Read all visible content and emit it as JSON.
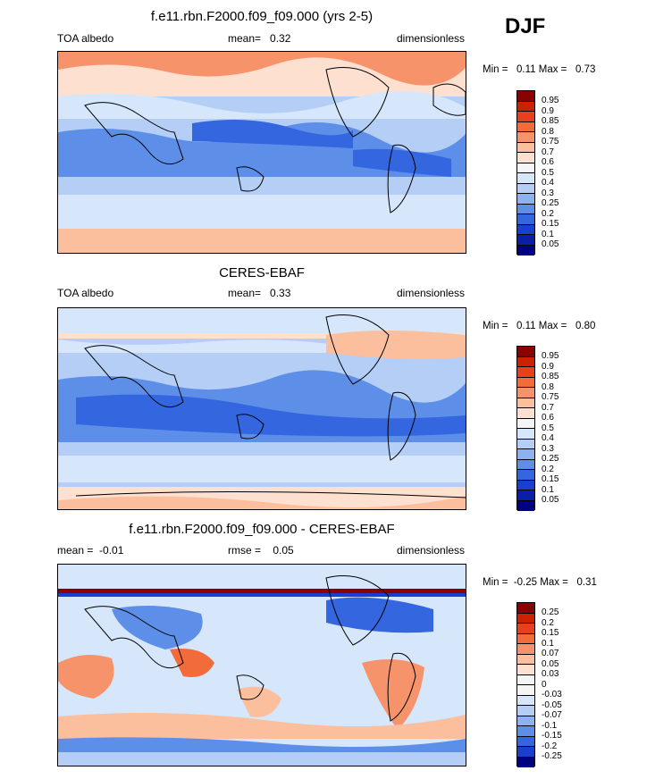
{
  "season": "DJF",
  "panels": [
    {
      "title": "f.e11.rbn.F2000.f09_f09.000 (yrs 2-5)",
      "left_label": "TOA albedo",
      "center_label": "mean=   0.32",
      "right_label": "dimensionless",
      "minmax": "Min =   0.11 Max =   0.73"
    },
    {
      "title": "CERES-EBAF",
      "left_label": "TOA albedo",
      "center_label": "mean=   0.33",
      "right_label": "dimensionless",
      "minmax": "Min =   0.11 Max =   0.80"
    },
    {
      "title": "f.e11.rbn.F2000.f09_f09.000 - CERES-EBAF",
      "left_label": "mean =  -0.01",
      "center_label": "rmse =    0.05",
      "right_label": "dimensionless",
      "minmax": "Min =  -0.25 Max =   0.31"
    }
  ],
  "colorbar_abs": {
    "labels": [
      "0.95",
      "0.9",
      "0.85",
      "0.8",
      "0.75",
      "0.7",
      "0.6",
      "0.5",
      "0.4",
      "0.3",
      "0.25",
      "0.2",
      "0.15",
      "0.1",
      "0.05"
    ],
    "colors": [
      "#8b0000",
      "#cc2200",
      "#e8401a",
      "#f26b3a",
      "#f7936a",
      "#fbbf9e",
      "#fde0cf",
      "#f5f5f5",
      "#d6e6fb",
      "#b4cef6",
      "#8cb2f1",
      "#5e8fe8",
      "#3466e0",
      "#1a3fd0",
      "#0a1fa8",
      "#000080"
    ]
  },
  "colorbar_diff": {
    "labels": [
      "0.25",
      "0.2",
      "0.15",
      "0.1",
      "0.07",
      "0.05",
      "0.03",
      "0",
      "-0.03",
      "-0.05",
      "-0.07",
      "-0.1",
      "-0.15",
      "-0.2",
      "-0.25"
    ],
    "colors": [
      "#8b0000",
      "#cc2200",
      "#e8401a",
      "#f26b3a",
      "#f7936a",
      "#fbbf9e",
      "#fde0cf",
      "#f5f5f5",
      "#f5f5f5",
      "#d6e6fb",
      "#b4cef6",
      "#8cb2f1",
      "#5e8fe8",
      "#3466e0",
      "#1a3fd0",
      "#000080"
    ]
  }
}
